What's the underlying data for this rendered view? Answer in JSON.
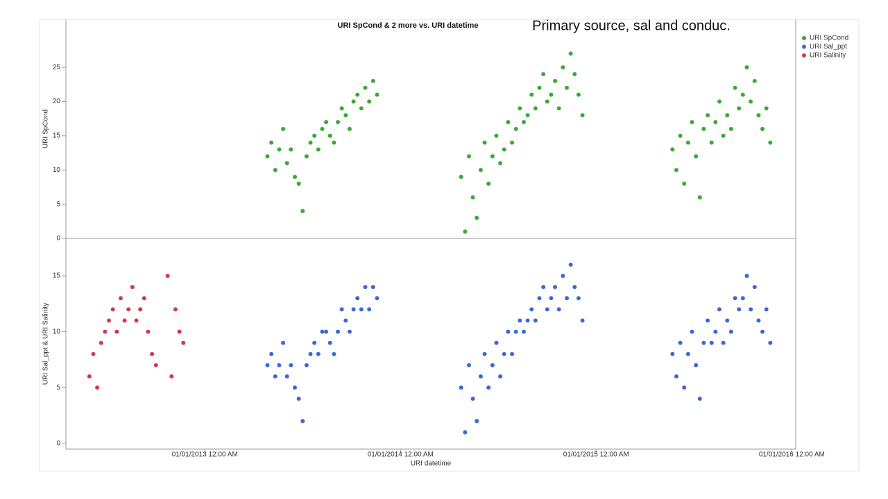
{
  "chart_data": {
    "type": "scatter",
    "title": "URI SpCond & 2 more vs. URI datetime",
    "annotation": "Primary source, sal and conduc.",
    "xlabel": "URI datetime",
    "xlim": [
      2012.29,
      2016.02
    ],
    "xticks": [
      {
        "value": 2013,
        "label": "01/01/2013 12:00 AM"
      },
      {
        "value": 2014,
        "label": "01/01/2014 12:00 AM"
      },
      {
        "value": 2015,
        "label": "01/01/2015 12:00 AM"
      },
      {
        "value": 2016,
        "label": "01/01/2016 12:00 AM"
      }
    ],
    "legend": "top-right",
    "panels": [
      {
        "ylabel": "URI SpCond",
        "ylim": [
          0,
          32
        ],
        "yticks": [
          0,
          5,
          10,
          15,
          20,
          25
        ],
        "series": [
          {
            "name": "URI SpCond",
            "color": "#3aaa35",
            "x": [
              2013.32,
              2013.34,
              2013.36,
              2013.38,
              2013.4,
              2013.42,
              2013.44,
              2013.46,
              2013.48,
              2013.5,
              2013.52,
              2013.54,
              2013.56,
              2013.58,
              2013.6,
              2013.62,
              2013.64,
              2013.66,
              2013.68,
              2013.7,
              2013.72,
              2013.74,
              2013.76,
              2013.78,
              2013.8,
              2013.82,
              2013.84,
              2013.86,
              2013.88,
              2014.31,
              2014.33,
              2014.35,
              2014.37,
              2014.39,
              2014.41,
              2014.43,
              2014.45,
              2014.47,
              2014.49,
              2014.51,
              2014.53,
              2014.55,
              2014.57,
              2014.59,
              2014.61,
              2014.63,
              2014.65,
              2014.67,
              2014.69,
              2014.71,
              2014.73,
              2014.75,
              2014.77,
              2014.79,
              2014.81,
              2014.83,
              2014.85,
              2014.87,
              2014.89,
              2014.91,
              2014.93,
              2015.39,
              2015.41,
              2015.43,
              2015.45,
              2015.47,
              2015.49,
              2015.51,
              2015.53,
              2015.55,
              2015.57,
              2015.59,
              2015.61,
              2015.63,
              2015.65,
              2015.67,
              2015.69,
              2015.71,
              2015.73,
              2015.75,
              2015.77,
              2015.79,
              2015.81,
              2015.83,
              2015.85,
              2015.87,
              2015.89
            ],
            "values": [
              12,
              14,
              10,
              13,
              16,
              11,
              13,
              9,
              8,
              4,
              12,
              14,
              15,
              13,
              16,
              17,
              15,
              14,
              17,
              19,
              18,
              16,
              20,
              21,
              19,
              22,
              20,
              23,
              21,
              9,
              1,
              12,
              6,
              3,
              10,
              14,
              8,
              12,
              15,
              11,
              13,
              17,
              14,
              16,
              19,
              17,
              18,
              21,
              19,
              22,
              24,
              20,
              21,
              23,
              19,
              25,
              22,
              27,
              24,
              21,
              18,
              13,
              10,
              15,
              8,
              14,
              17,
              12,
              6,
              16,
              18,
              14,
              17,
              20,
              15,
              18,
              16,
              22,
              19,
              21,
              25,
              20,
              23,
              18,
              16,
              19,
              14
            ]
          }
        ]
      },
      {
        "ylabel": "URI Sal_ppt & URI Salinity",
        "ylim": [
          -0.5,
          18.35
        ],
        "yticks": [
          0,
          5,
          10,
          15
        ],
        "series": [
          {
            "name": "URI Sal_ppt",
            "color": "#3b67d9",
            "x": [
              2013.32,
              2013.34,
              2013.36,
              2013.38,
              2013.4,
              2013.42,
              2013.44,
              2013.46,
              2013.48,
              2013.5,
              2013.52,
              2013.54,
              2013.56,
              2013.58,
              2013.6,
              2013.62,
              2013.64,
              2013.66,
              2013.68,
              2013.7,
              2013.72,
              2013.74,
              2013.76,
              2013.78,
              2013.8,
              2013.82,
              2013.84,
              2013.86,
              2013.88,
              2014.31,
              2014.33,
              2014.35,
              2014.37,
              2014.39,
              2014.41,
              2014.43,
              2014.45,
              2014.47,
              2014.49,
              2014.51,
              2014.53,
              2014.55,
              2014.57,
              2014.59,
              2014.61,
              2014.63,
              2014.65,
              2014.67,
              2014.69,
              2014.71,
              2014.73,
              2014.75,
              2014.77,
              2014.79,
              2014.81,
              2014.83,
              2014.85,
              2014.87,
              2014.89,
              2014.91,
              2014.93,
              2015.39,
              2015.41,
              2015.43,
              2015.45,
              2015.47,
              2015.49,
              2015.51,
              2015.53,
              2015.55,
              2015.57,
              2015.59,
              2015.61,
              2015.63,
              2015.65,
              2015.67,
              2015.69,
              2015.71,
              2015.73,
              2015.75,
              2015.77,
              2015.79,
              2015.81,
              2015.83,
              2015.85,
              2015.87,
              2015.89
            ],
            "values": [
              7,
              8,
              6,
              7,
              9,
              6,
              7,
              5,
              4,
              2,
              7,
              8,
              9,
              8,
              10,
              10,
              9,
              8,
              10,
              12,
              11,
              10,
              12,
              13,
              12,
              14,
              12,
              14,
              13,
              5,
              1,
              7,
              4,
              2,
              6,
              8,
              5,
              7,
              9,
              6,
              8,
              10,
              8,
              10,
              11,
              10,
              11,
              12,
              11,
              13,
              14,
              12,
              13,
              14,
              12,
              15,
              13,
              16,
              14,
              13,
              11,
              8,
              6,
              9,
              5,
              8,
              10,
              7,
              4,
              9,
              11,
              9,
              10,
              12,
              9,
              11,
              10,
              13,
              12,
              13,
              15,
              12,
              14,
              11,
              10,
              12,
              9
            ]
          },
          {
            "name": "URI Salinity",
            "color": "#d13a4c",
            "x": [
              2012.41,
              2012.43,
              2012.45,
              2012.47,
              2012.49,
              2012.51,
              2012.53,
              2012.55,
              2012.57,
              2012.59,
              2012.61,
              2012.63,
              2012.65,
              2012.67,
              2012.69,
              2012.71,
              2012.73,
              2012.75,
              2012.81,
              2012.83,
              2012.85,
              2012.87,
              2012.89
            ],
            "values": [
              6,
              8,
              5,
              9,
              10,
              11,
              12,
              10,
              13,
              11,
              12,
              14,
              11,
              12,
              13,
              10,
              8,
              7,
              15,
              6,
              12,
              10,
              9
            ]
          }
        ]
      }
    ]
  }
}
